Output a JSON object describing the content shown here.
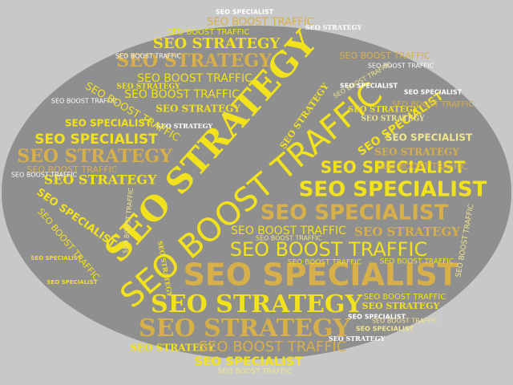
{
  "phrases": {
    "specialist": "SEO SPECIALIST",
    "strategy": "SEO STRATEGY",
    "boost": "SEO BOOST TRAFFIC"
  },
  "colors": {
    "page_background": "#c8c8c8",
    "ellipse": "#8f8f8f",
    "bright_yellow": "#f2e21c",
    "gold": "#d8b04a",
    "pale_yellow": "#f0e68c",
    "white": "#ffffff"
  }
}
